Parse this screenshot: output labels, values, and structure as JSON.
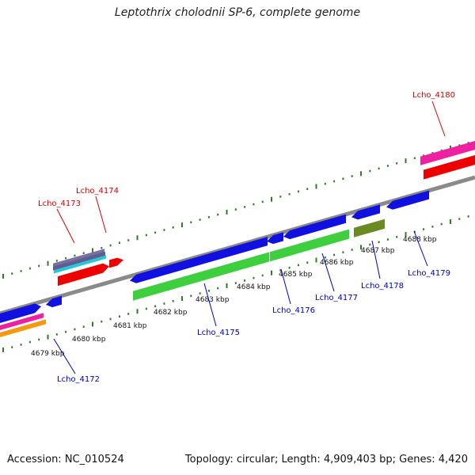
{
  "title": "Leptothrix cholodnii SP-6, complete genome",
  "footer": {
    "accession": "Accession: NC_010524",
    "summary": "Topology: circular; Length: 4,909,403 bp; Genes: 4,420"
  },
  "colors": {
    "backbone": "#8a8a8a",
    "ticks": "#2e7d22",
    "label_red": "#d40000",
    "label_blue": "#0000b8",
    "blue": "#1010e0",
    "green": "#3ecf3e",
    "olive": "#6b8a22",
    "red": "#ee0000",
    "magenta": "#ee1fa0",
    "orange": "#f59a10",
    "cyan": "#22c8d8"
  },
  "scale_labels": [
    "4679 kbp",
    "4680 kbp",
    "4681 kbp",
    "4682 kbp",
    "4683 kbp",
    "4684 kbp",
    "4685 kbp",
    "4686 kbp",
    "4687 kbp",
    "4688 kbp"
  ],
  "gene_labels": [
    {
      "text": "Lcho_4180",
      "color": "red"
    },
    {
      "text": "Lcho_4174",
      "color": "red"
    },
    {
      "text": "Lcho_4173",
      "color": "red"
    },
    {
      "text": "Lcho_4172",
      "color": "blue"
    },
    {
      "text": "Lcho_4175",
      "color": "blue"
    },
    {
      "text": "Lcho_4176",
      "color": "blue"
    },
    {
      "text": "Lcho_4177",
      "color": "blue"
    },
    {
      "text": "Lcho_4178",
      "color": "blue"
    },
    {
      "text": "Lcho_4179",
      "color": "blue"
    }
  ]
}
